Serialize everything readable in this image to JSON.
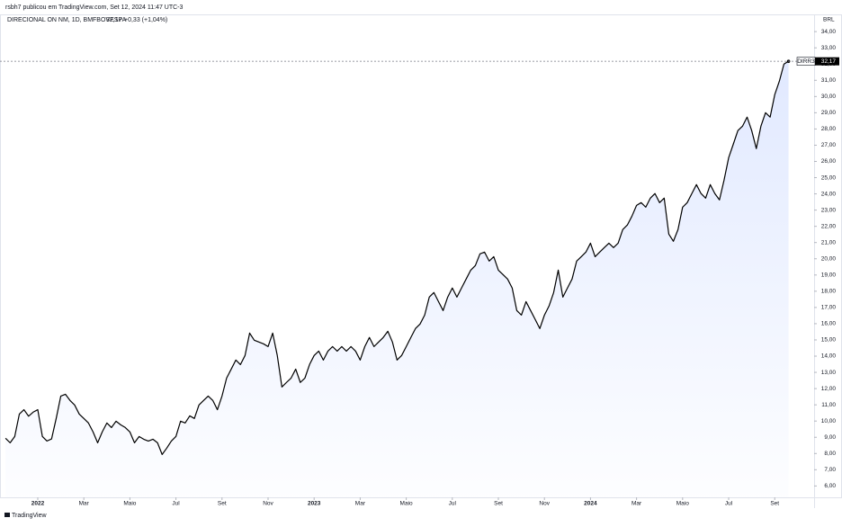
{
  "header": "rsbh7 publicou em TradingView.com, Set 12, 2024 11:47 UTC-3",
  "legend": {
    "symbol": "DIRECIONAL ON NM, 1D, BMFBOVESPA",
    "price": "32,17",
    "change": "+0,33 (+1,04%)"
  },
  "currency": "BRL",
  "ticker": "DIRR3",
  "brand": "TradingView",
  "chart_data": {
    "type": "area",
    "last_price": {
      "value": 32.17,
      "label": "32,17"
    },
    "xlim": [
      -1.64,
      33.71
    ],
    "ylim": [
      5.3,
      34.95
    ],
    "grid": false,
    "xticks": [
      {
        "value": 0,
        "label": "2022"
      },
      {
        "value": 2,
        "label": "Mar"
      },
      {
        "value": 4,
        "label": "Maio"
      },
      {
        "value": 6,
        "label": "Jul"
      },
      {
        "value": 8,
        "label": "Set"
      },
      {
        "value": 10,
        "label": "Nov"
      },
      {
        "value": 12,
        "label": "2023"
      },
      {
        "value": 14,
        "label": "Mar"
      },
      {
        "value": 16,
        "label": "Maio"
      },
      {
        "value": 18,
        "label": "Jul"
      },
      {
        "value": 20,
        "label": "Set"
      },
      {
        "value": 22,
        "label": "Nov"
      },
      {
        "value": 24,
        "label": "2024"
      },
      {
        "value": 26,
        "label": "Mar"
      },
      {
        "value": 28,
        "label": "Maio"
      },
      {
        "value": 30,
        "label": "Jul"
      },
      {
        "value": 32,
        "label": "Set"
      }
    ],
    "yticks": [
      {
        "value": 6,
        "label": "6,00"
      },
      {
        "value": 7,
        "label": "7,00"
      },
      {
        "value": 8,
        "label": "8,00"
      },
      {
        "value": 9,
        "label": "9,00"
      },
      {
        "value": 10,
        "label": "10,00"
      },
      {
        "value": 11,
        "label": "11,00"
      },
      {
        "value": 12,
        "label": "12,00"
      },
      {
        "value": 13,
        "label": "13,00"
      },
      {
        "value": 14,
        "label": "14,00"
      },
      {
        "value": 15,
        "label": "15,00"
      },
      {
        "value": 16,
        "label": "16,00"
      },
      {
        "value": 17,
        "label": "17,00"
      },
      {
        "value": 18,
        "label": "18,00"
      },
      {
        "value": 19,
        "label": "19,00"
      },
      {
        "value": 20,
        "label": "20,00"
      },
      {
        "value": 21,
        "label": "21,00"
      },
      {
        "value": 22,
        "label": "22,00"
      },
      {
        "value": 23,
        "label": "23,00"
      },
      {
        "value": 24,
        "label": "24,00"
      },
      {
        "value": 25,
        "label": "25,00"
      },
      {
        "value": 26,
        "label": "26,00"
      },
      {
        "value": 27,
        "label": "27,00"
      },
      {
        "value": 28,
        "label": "28,00"
      },
      {
        "value": 29,
        "label": "29,00"
      },
      {
        "value": 30,
        "label": "30,00"
      },
      {
        "value": 31,
        "label": "31,00"
      },
      {
        "value": 32,
        "label": "32,00"
      },
      {
        "value": 33,
        "label": "33,00"
      },
      {
        "value": 34,
        "label": "34,00"
      }
    ],
    "x": [
      -1.4,
      -1.2,
      -1,
      -0.8,
      -0.6,
      -0.4,
      -0.2,
      0,
      0.2,
      0.4,
      0.6,
      0.8,
      1,
      1.2,
      1.4,
      1.6,
      1.8,
      2,
      2.2,
      2.4,
      2.6,
      2.8,
      3,
      3.2,
      3.4,
      3.6,
      3.8,
      4,
      4.2,
      4.4,
      4.6,
      4.8,
      5,
      5.2,
      5.4,
      5.6,
      5.8,
      6,
      6.2,
      6.4,
      6.6,
      6.8,
      7,
      7.2,
      7.4,
      7.6,
      7.8,
      8,
      8.2,
      8.4,
      8.6,
      8.8,
      9,
      9.2,
      9.4,
      9.6,
      9.8,
      10,
      10.2,
      10.4,
      10.6,
      10.8,
      11,
      11.2,
      11.4,
      11.6,
      11.8,
      12,
      12.2,
      12.4,
      12.6,
      12.8,
      13,
      13.2,
      13.4,
      13.6,
      13.8,
      14,
      14.2,
      14.4,
      14.6,
      14.8,
      15,
      15.2,
      15.4,
      15.6,
      15.8,
      16,
      16.2,
      16.4,
      16.6,
      16.8,
      17,
      17.2,
      17.4,
      17.6,
      17.8,
      18,
      18.2,
      18.4,
      18.6,
      18.8,
      19,
      19.2,
      19.4,
      19.6,
      19.8,
      20,
      20.2,
      20.4,
      20.6,
      20.8,
      21,
      21.2,
      21.4,
      21.6,
      21.8,
      22,
      22.2,
      22.4,
      22.6,
      22.8,
      23,
      23.2,
      23.4,
      23.6,
      23.8,
      24,
      24.2,
      24.4,
      24.6,
      24.8,
      25,
      25.2,
      25.4,
      25.6,
      25.8,
      26,
      26.2,
      26.4,
      26.6,
      26.8,
      27,
      27.2,
      27.4,
      27.6,
      27.8,
      28,
      28.2,
      28.4,
      28.6,
      28.8,
      29,
      29.2,
      29.4,
      29.6,
      29.8,
      30,
      30.2,
      30.4,
      30.6,
      30.8,
      31,
      31.2,
      31.4,
      31.6,
      31.8,
      32,
      32.2,
      32.4,
      32.6
    ],
    "series": [
      {
        "name": "DIRR3",
        "color": "#000000",
        "fill": "#2962ff",
        "values": [
          8.94,
          8.66,
          9.05,
          10.43,
          10.7,
          10.3,
          10.55,
          10.7,
          9.05,
          8.77,
          8.9,
          10.16,
          11.54,
          11.65,
          11.27,
          10.99,
          10.43,
          10.16,
          9.88,
          9.33,
          8.66,
          9.33,
          9.88,
          9.6,
          9.99,
          9.77,
          9.6,
          9.33,
          8.66,
          9.05,
          8.88,
          8.77,
          8.88,
          8.66,
          7.94,
          8.33,
          8.77,
          9.05,
          9.99,
          9.88,
          10.32,
          10.16,
          10.99,
          11.27,
          11.54,
          11.27,
          10.7,
          11.54,
          12.65,
          13.2,
          13.76,
          13.48,
          14.04,
          15.42,
          14.98,
          14.87,
          14.76,
          14.59,
          15.42,
          14.04,
          12.1,
          12.38,
          12.65,
          13.2,
          12.38,
          12.65,
          13.48,
          14.04,
          14.31,
          13.76,
          14.31,
          14.59,
          14.31,
          14.59,
          14.31,
          14.59,
          14.31,
          13.76,
          14.59,
          15.15,
          14.59,
          14.87,
          15.15,
          15.53,
          14.87,
          13.76,
          14.04,
          14.59,
          15.15,
          15.7,
          15.98,
          16.53,
          17.64,
          17.92,
          17.36,
          16.81,
          17.64,
          18.2,
          17.64,
          18.2,
          18.75,
          19.3,
          19.58,
          20.3,
          20.41,
          19.86,
          20.13,
          19.3,
          19.03,
          18.75,
          18.2,
          16.81,
          16.53,
          17.36,
          16.81,
          16.26,
          15.7,
          16.53,
          17.09,
          17.92,
          19.3,
          17.64,
          18.2,
          18.75,
          19.86,
          20.13,
          20.41,
          20.96,
          20.13,
          20.41,
          20.69,
          20.96,
          20.69,
          20.96,
          21.8,
          22.08,
          22.63,
          23.29,
          23.46,
          23.18,
          23.74,
          24.02,
          23.46,
          23.74,
          21.52,
          21.08,
          21.8,
          23.18,
          23.46,
          24.02,
          24.57,
          24.02,
          23.74,
          24.57,
          24.02,
          23.63,
          24.85,
          26.23,
          27.06,
          27.9,
          28.17,
          28.73,
          27.9,
          26.79,
          28.17,
          29.0,
          28.73,
          30.11,
          30.94,
          32.0,
          32.17
        ]
      }
    ]
  }
}
